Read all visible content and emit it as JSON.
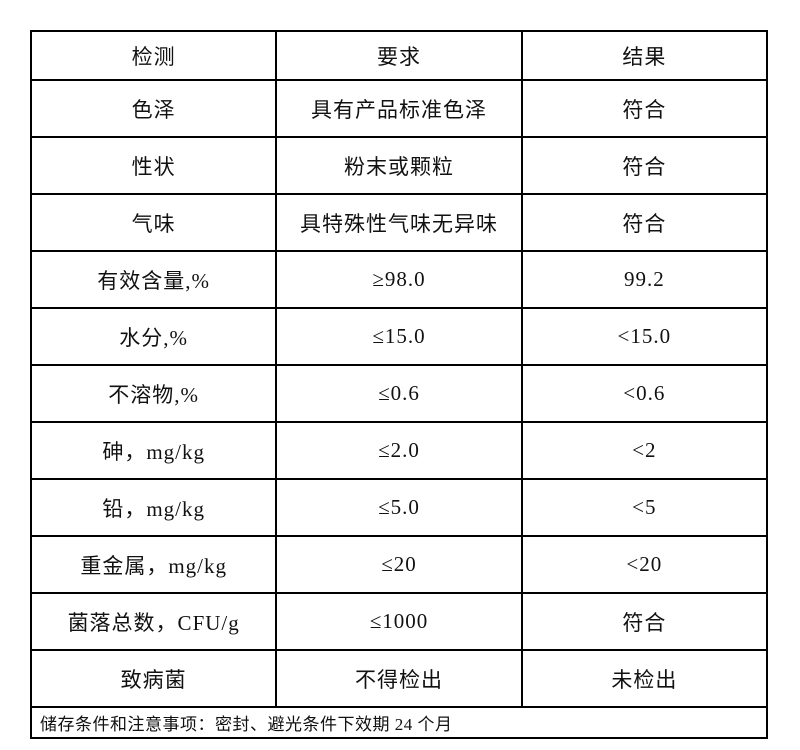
{
  "table": {
    "headers": [
      "检测",
      "要求",
      "结果"
    ],
    "rows": [
      [
        "色泽",
        "具有产品标准色泽",
        "符合"
      ],
      [
        "性状",
        "粉末或颗粒",
        "符合"
      ],
      [
        "气味",
        "具特殊性气味无异味",
        "符合"
      ],
      [
        "有效含量,%",
        "≥98.0",
        "99.2"
      ],
      [
        "水分,%",
        "≤15.0",
        "<15.0"
      ],
      [
        "不溶物,%",
        "≤0.6",
        "<0.6"
      ],
      [
        "砷，mg/kg",
        "≤2.0",
        "<2"
      ],
      [
        "铅，mg/kg",
        "≤5.0",
        "<5"
      ],
      [
        "重金属，mg/kg",
        "≤20",
        "<20"
      ],
      [
        "菌落总数，CFU/g",
        "≤1000",
        "符合"
      ],
      [
        "致病菌",
        "不得检出",
        "未检出"
      ]
    ],
    "footer_note": "储存条件和注意事项：密封、避光条件下效期 24 个月"
  }
}
